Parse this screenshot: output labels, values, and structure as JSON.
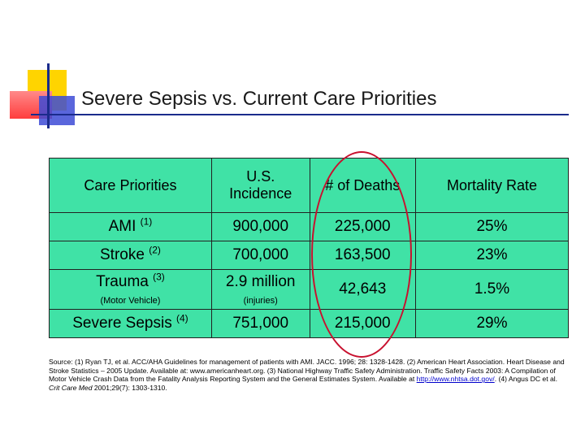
{
  "title": "Severe Sepsis vs. Current Care Priorities",
  "table": {
    "headers": [
      "Care Priorities",
      "U.S. Incidence",
      "# of Deaths",
      "Mortality Rate"
    ],
    "header_incidence_line1": "U.S.",
    "header_incidence_line2": "Incidence",
    "rows": [
      {
        "priority": "AMI",
        "ref": "(1)",
        "incidence": "900,000",
        "deaths": "225,000",
        "rate": "25%"
      },
      {
        "priority": "Stroke",
        "ref": "(2)",
        "incidence": "700,000",
        "deaths": "163,500",
        "rate": "23%"
      },
      {
        "priority": "Trauma",
        "ref": "(3)",
        "sub": "(Motor Vehicle)",
        "incidence": "2.9 million",
        "incidence_sub": "(injuries)",
        "deaths": "42,643",
        "rate": "1.5%"
      },
      {
        "priority": "Severe Sepsis",
        "ref": "(4)",
        "incidence": "751,000",
        "deaths": "215,000",
        "rate": "29%"
      }
    ],
    "colors": {
      "table_bg": "#40e2a6",
      "circle": "#c8102e"
    }
  },
  "source": {
    "text1": "Source:  (1) Ryan TJ, et al. ACC/AHA Guidelines for management of patients with AMI. JACC. 1996; 28: 1328-1428. (2) American Heart Association. Heart Disease and Stroke Statistics – 2005 Update. Available at: www.americanheart.org. (3) National Highway Traffic Safety Administration. Traffic Safety Facts 2003: A Compilation of Motor Vehicle Crash Data from the Fatality Analysis Reporting System and the General Estimates System. Available at ",
    "link": "http://www.nhtsa.dot.gov/",
    "text2": ". (4) Angus DC et al. ",
    "journal": "Crit Care Med",
    "text3": " 2001;29(7): 1303-1310."
  }
}
